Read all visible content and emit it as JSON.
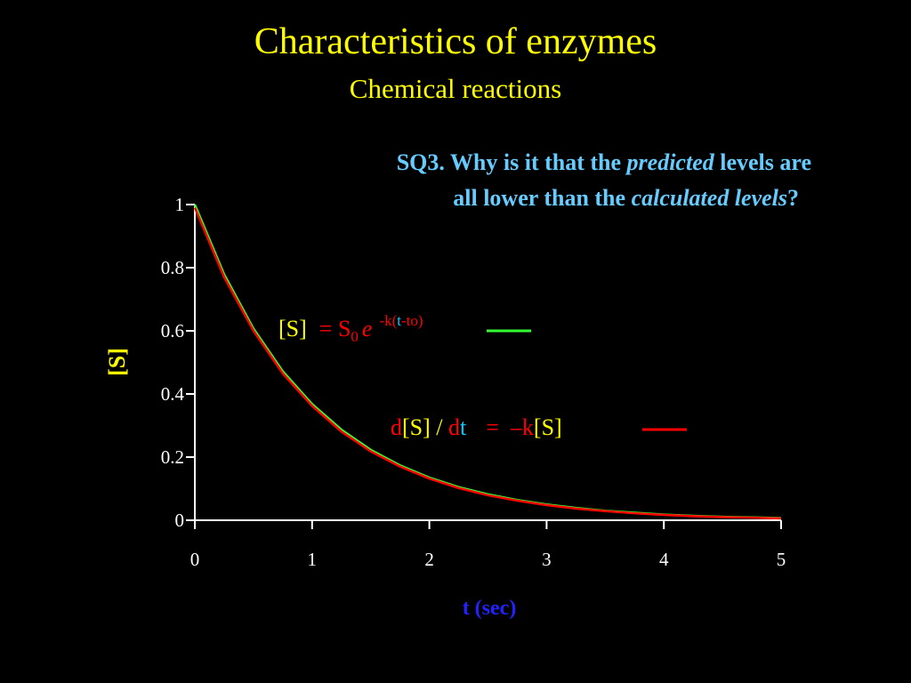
{
  "header": {
    "title": "Characteristics of enzymes",
    "subtitle": "Chemical reactions"
  },
  "question": [
    [
      "SQ3. Why is it that the ",
      "predicted",
      " levels are"
    ],
    [
      "all lower than the ",
      "calculated levels",
      "?"
    ]
  ],
  "equation_1": [
    "[S]",
    "= S",
    "0",
    "e",
    "-k(",
    "t",
    "-to)"
  ],
  "equation_2": [
    "d",
    "[S] / ",
    "d",
    "t",
    "=  –k",
    "[S]"
  ],
  "chart_data": {
    "type": "line",
    "x": [
      0,
      0.25,
      0.5,
      0.75,
      1,
      1.25,
      1.5,
      1.75,
      2,
      2.25,
      2.5,
      2.75,
      3,
      3.25,
      3.5,
      3.75,
      4,
      4.25,
      4.5,
      4.75,
      5
    ],
    "series": [
      {
        "color": "#33ff33",
        "values": [
          1,
          0.779,
          0.607,
          0.472,
          0.368,
          0.287,
          0.223,
          0.174,
          0.135,
          0.105,
          0.082,
          0.064,
          0.05,
          0.039,
          0.03,
          0.024,
          0.018,
          0.014,
          0.011,
          0.009,
          0.007
        ]
      },
      {
        "color": "#ff0000",
        "values": [
          0.99,
          0.77,
          0.6,
          0.465,
          0.362,
          0.281,
          0.218,
          0.17,
          0.132,
          0.102,
          0.079,
          0.062,
          0.048,
          0.037,
          0.029,
          0.022,
          0.017,
          0.013,
          0.01,
          0.008,
          0.006
        ]
      }
    ],
    "xlim": [
      0,
      5
    ],
    "ylim": [
      0,
      1
    ],
    "xticks": [
      0,
      1,
      2,
      3,
      4,
      5
    ],
    "yticks": [
      0,
      0.2,
      0.4,
      0.6,
      0.8,
      1
    ],
    "xlabel": "t (sec)",
    "ylabel": "[S]"
  }
}
